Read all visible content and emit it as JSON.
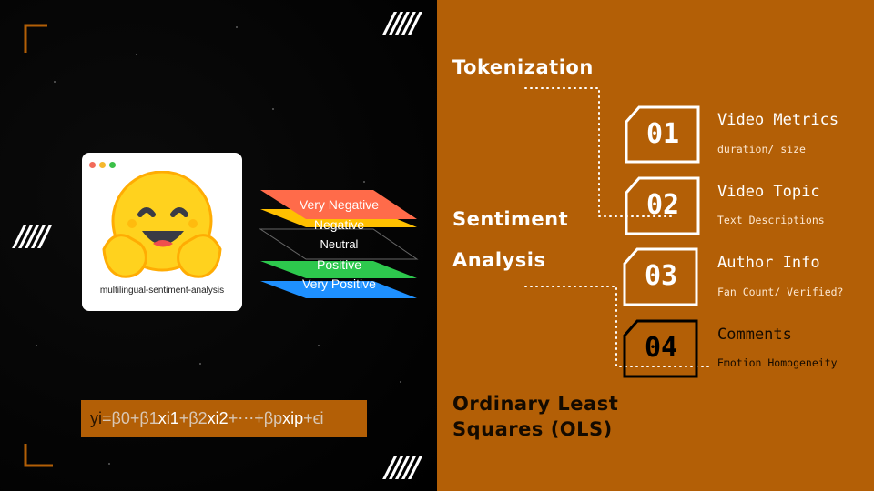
{
  "colors": {
    "accent": "#B35F06",
    "background": "#000000"
  },
  "decor": {
    "slashes": "/////"
  },
  "model_card": {
    "label": "multilingual-sentiment-analysis",
    "icon": "hugging-face-emoji"
  },
  "sentiment_layers": [
    {
      "label": "Very Negative",
      "color": "#FF6B4A"
    },
    {
      "label": "Negative",
      "color": "#FFC000"
    },
    {
      "label": "Neutral",
      "color": "transparent"
    },
    {
      "label": "Positive",
      "color": "#2DC84D"
    },
    {
      "label": "Very Positive",
      "color": "#1E90FF"
    }
  ],
  "formula": {
    "yi": "yi",
    "p1": "=β0+β1",
    "x1": "xi1",
    "p2": "+β2",
    "x2": "xi2",
    "p3": "+⋯+βp",
    "xp": "xip",
    "p4": "+ϵi"
  },
  "sections": {
    "tokenization": "Tokenization",
    "sentiment1": "Sentiment",
    "sentiment2": "Analysis",
    "ols1": "Ordinary Least",
    "ols2": "Squares (OLS)"
  },
  "items": [
    {
      "number": "01",
      "title": "Video Metrics",
      "subtitle": "duration/ size"
    },
    {
      "number": "02",
      "title": "Video Topic",
      "subtitle": "Text Descriptions"
    },
    {
      "number": "03",
      "title": "Author Info",
      "subtitle": "Fan Count/ Verified?"
    },
    {
      "number": "04",
      "title": "Comments",
      "subtitle": "Emotion Homogeneity"
    }
  ]
}
